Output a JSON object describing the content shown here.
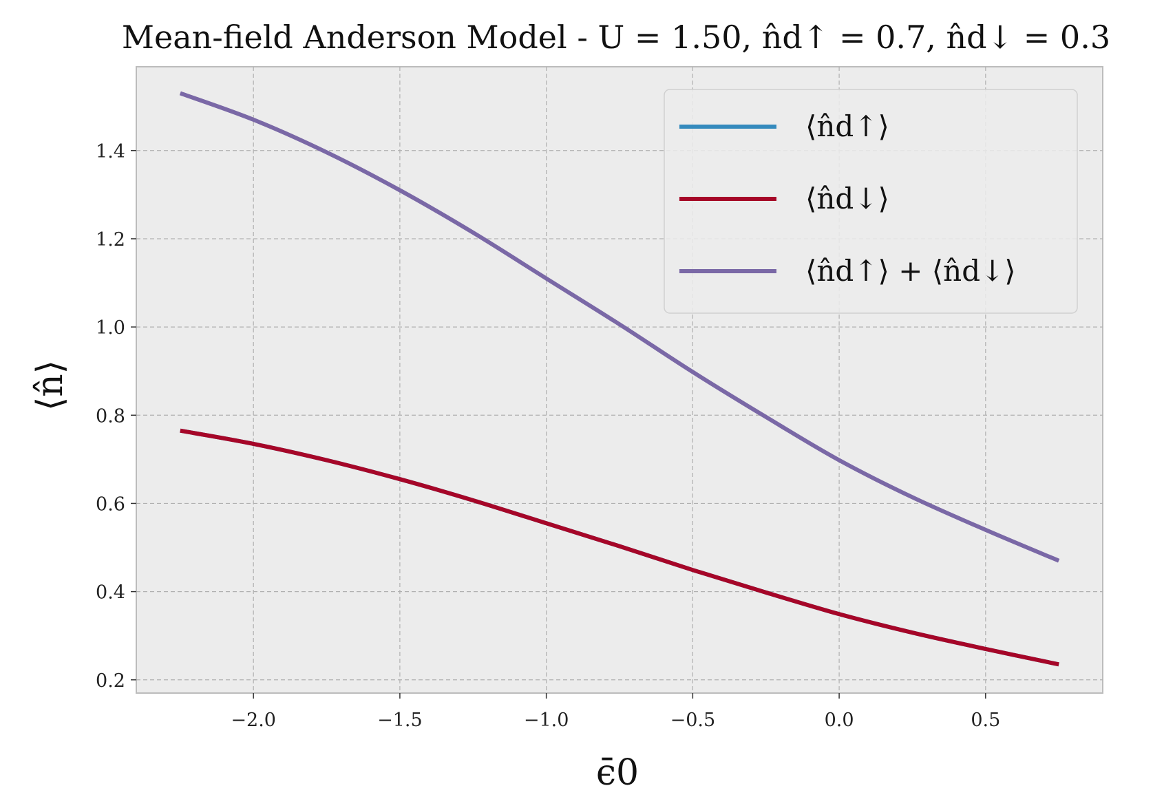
{
  "chart_data": {
    "type": "line",
    "title": "Mean-field Anderson Model - U = 1.50, n̂d↑ = 0.7, n̂d↓ = 0.3",
    "xlabel": "ϵ̄0",
    "ylabel": "⟨n̂⟩",
    "xlim": [
      -2.4,
      0.9
    ],
    "ylim": [
      0.17,
      1.59
    ],
    "xticks": [
      -2.0,
      -1.5,
      -1.0,
      -0.5,
      0.0,
      0.5
    ],
    "xtick_labels": [
      "−2.0",
      "−1.5",
      "−1.0",
      "−0.5",
      "0.0",
      "0.5"
    ],
    "yticks": [
      0.2,
      0.4,
      0.6,
      0.8,
      1.0,
      1.2,
      1.4
    ],
    "ytick_labels": [
      "0.2",
      "0.4",
      "0.6",
      "0.8",
      "1.0",
      "1.2",
      "1.4"
    ],
    "grid": true,
    "legend_position": "top-right",
    "x": [
      -2.25,
      -2.0,
      -1.75,
      -1.5,
      -1.25,
      -1.0,
      -0.75,
      -0.5,
      -0.25,
      0.0,
      0.25,
      0.5,
      0.75
    ],
    "series": [
      {
        "name": "⟨n̂d↑⟩",
        "color": "#348abd",
        "values": [
          0.765,
          0.735,
          0.698,
          0.655,
          0.607,
          0.555,
          0.503,
          0.449,
          0.398,
          0.349,
          0.307,
          0.27,
          0.235
        ]
      },
      {
        "name": "⟨n̂d↓⟩",
        "color": "#a60628",
        "values": [
          0.765,
          0.735,
          0.698,
          0.655,
          0.607,
          0.555,
          0.503,
          0.449,
          0.398,
          0.349,
          0.307,
          0.27,
          0.235
        ]
      },
      {
        "name": "⟨n̂d↑⟩ + ⟨n̂d↓⟩",
        "color": "#7a68a6",
        "values": [
          1.53,
          1.47,
          1.396,
          1.31,
          1.214,
          1.11,
          1.006,
          0.898,
          0.796,
          0.698,
          0.614,
          0.54,
          0.47
        ]
      }
    ]
  }
}
